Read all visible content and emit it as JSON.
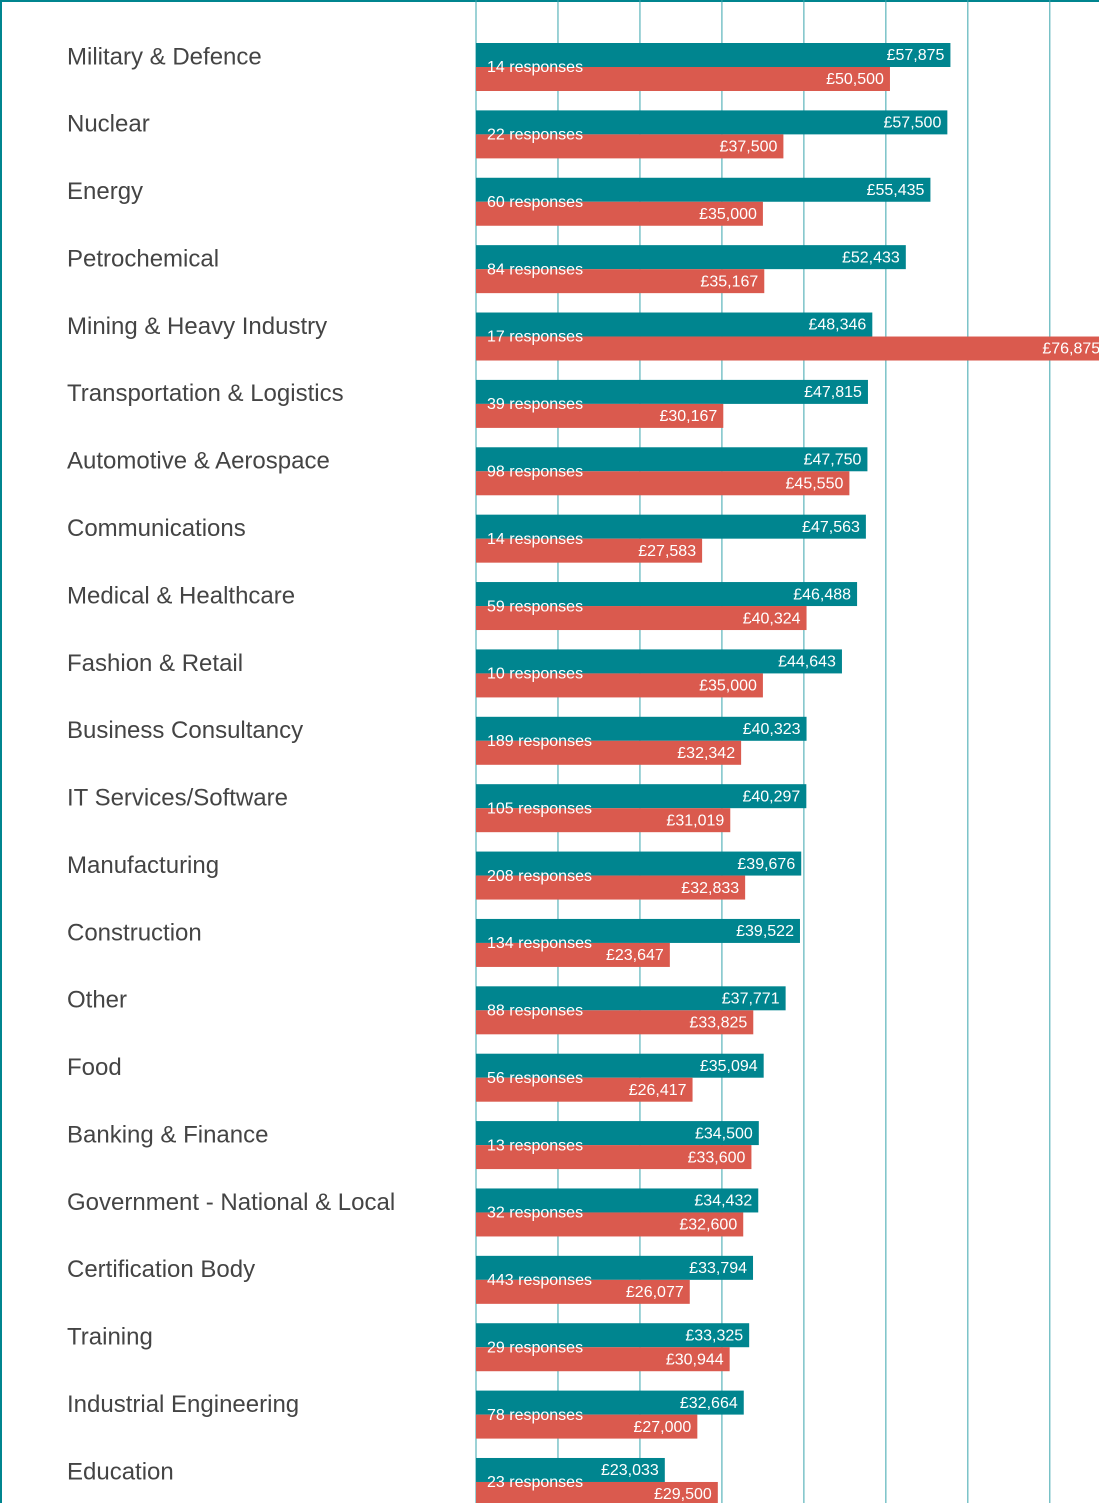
{
  "chart_data": {
    "type": "bar",
    "orientation": "horizontal",
    "categories": [
      "Military & Defence",
      "Nuclear",
      "Energy",
      "Petrochemical",
      "Mining & Heavy Industry",
      "Transportation & Logistics",
      "Automotive & Aerospace",
      "Communications",
      "Medical & Healthcare",
      "Fashion & Retail",
      "Business Consultancy",
      "IT Services/Software",
      "Manufacturing",
      "Construction",
      "Other",
      "Food",
      "Banking & Finance",
      "Government - National & Local",
      "Certification Body",
      "Training",
      "Industrial Engineering",
      "Education"
    ],
    "response_labels": [
      "14 responses",
      "22 responses",
      "60 responses",
      "84 responses",
      "17 responses",
      "39 responses",
      "98 responses",
      "14 responses",
      "59 responses",
      "10 responses",
      "189 responses",
      "105 responses",
      "208 responses",
      "134 responses",
      "88 responses",
      "56 responses",
      "13 responses",
      "32 responses",
      "443 responses",
      "29 responses",
      "78 responses",
      "23 responses"
    ],
    "series": [
      {
        "color": "#00858f",
        "values": [
          57875,
          57500,
          55435,
          52433,
          48346,
          47815,
          47750,
          47563,
          46488,
          44643,
          40323,
          40297,
          39676,
          39522,
          37771,
          35094,
          34500,
          34432,
          33794,
          33325,
          32664,
          23033
        ],
        "value_labels": [
          "£57,875",
          "£57,500",
          "£55,435",
          "£52,433",
          "£48,346",
          "£47,815",
          "£47,750",
          "£47,563",
          "£46,488",
          "£44,643",
          "£40,323",
          "£40,297",
          "£39,676",
          "£39,522",
          "£37,771",
          "£35,094",
          "£34,500",
          "£34,432",
          "£33,794",
          "£33,325",
          "£32,664",
          "£23,033"
        ]
      },
      {
        "color": "#da5a4e",
        "values": [
          50500,
          37500,
          35000,
          35167,
          76875,
          30167,
          45550,
          27583,
          40324,
          35000,
          32342,
          31019,
          32833,
          23647,
          33825,
          26417,
          33600,
          32600,
          26077,
          30944,
          27000,
          29500
        ],
        "value_labels": [
          "£50,500",
          "£37,500",
          "£35,000",
          "£35,167",
          "£76,875",
          "£30,167",
          "£45,550",
          "£27,583",
          "£40,324",
          "£35,000",
          "£32,342",
          "£31,019",
          "£32,833",
          "£23,647",
          "£33,825",
          "£26,417",
          "£33,600",
          "£32,600",
          "£26,077",
          "£30,944",
          "£27,000",
          "£29,500"
        ]
      }
    ],
    "xlim": [
      0,
      76000
    ],
    "xticks": [
      0,
      10000,
      20000,
      30000,
      40000,
      50000,
      60000,
      70000
    ],
    "grid": true,
    "tick_labels": false,
    "grid_color": "#3aa5ad"
  }
}
